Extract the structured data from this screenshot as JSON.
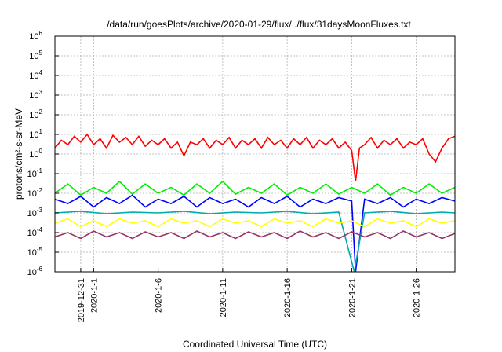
{
  "chart_data": {
    "type": "line",
    "title": "/data/run/goesPlots/archive/2020-01-29/flux/../flux/31daysMoonFluxes.txt",
    "xlabel": "Coordinated Universal Time (UTC)",
    "ylabel": "protons/cm²-s-sr-MeV",
    "yscale": "log",
    "ylim": [
      1e-06,
      1000000.0
    ],
    "xlim": [
      "2019-12-29",
      "2020-01-29"
    ],
    "grid": true,
    "legend": "none",
    "y_tick_labels": [
      {
        "base": "10",
        "exp": "-6"
      },
      {
        "base": "10",
        "exp": "-5"
      },
      {
        "base": "10",
        "exp": "-4"
      },
      {
        "base": "10",
        "exp": "-3"
      },
      {
        "base": "10",
        "exp": "-2"
      },
      {
        "base": "10",
        "exp": "-1"
      },
      {
        "base": "10",
        "exp": "0"
      },
      {
        "base": "10",
        "exp": "1"
      },
      {
        "base": "10",
        "exp": "2"
      },
      {
        "base": "10",
        "exp": "3"
      },
      {
        "base": "10",
        "exp": "4"
      },
      {
        "base": "10",
        "exp": "5"
      },
      {
        "base": "10",
        "exp": "6"
      }
    ],
    "x_ticks": [
      {
        "day": 2,
        "label": "2019-12-31"
      },
      {
        "day": 3,
        "label": "2020-1-1"
      },
      {
        "day": 8,
        "label": "2020-1-6"
      },
      {
        "day": 13,
        "label": "2020-1-11"
      },
      {
        "day": 18,
        "label": "2020-1-16"
      },
      {
        "day": 23,
        "label": "2020-1-21"
      },
      {
        "day": 28,
        "label": "2020-1-26"
      }
    ],
    "series": [
      {
        "color": "#ff0000",
        "values": [
          [
            0,
            2
          ],
          [
            0.5,
            5
          ],
          [
            1,
            3
          ],
          [
            1.5,
            8
          ],
          [
            2,
            4
          ],
          [
            2.5,
            10
          ],
          [
            3,
            3
          ],
          [
            3.5,
            6
          ],
          [
            4,
            2
          ],
          [
            4.5,
            9
          ],
          [
            5,
            4
          ],
          [
            5.5,
            7
          ],
          [
            6,
            3
          ],
          [
            6.5,
            8
          ],
          [
            7,
            2.5
          ],
          [
            7.5,
            5
          ],
          [
            8,
            3
          ],
          [
            8.5,
            6
          ],
          [
            9,
            2
          ],
          [
            9.5,
            4
          ],
          [
            10,
            0.8
          ],
          [
            10.5,
            4
          ],
          [
            11,
            3
          ],
          [
            11.5,
            6
          ],
          [
            12,
            2
          ],
          [
            12.5,
            5
          ],
          [
            13,
            3
          ],
          [
            13.5,
            7
          ],
          [
            14,
            2
          ],
          [
            14.5,
            5
          ],
          [
            15,
            3
          ],
          [
            15.5,
            6
          ],
          [
            16,
            2
          ],
          [
            16.5,
            7
          ],
          [
            17,
            3
          ],
          [
            17.5,
            5
          ],
          [
            18,
            2
          ],
          [
            18.5,
            6
          ],
          [
            19,
            3
          ],
          [
            19.5,
            7
          ],
          [
            20,
            2
          ],
          [
            20.5,
            5
          ],
          [
            21,
            3
          ],
          [
            21.5,
            6
          ],
          [
            22,
            2
          ],
          [
            22.5,
            4
          ],
          [
            23,
            1.5
          ],
          [
            23.3,
            0.04
          ],
          [
            23.6,
            2
          ],
          [
            24,
            3
          ],
          [
            24.5,
            7
          ],
          [
            25,
            2
          ],
          [
            25.5,
            5
          ],
          [
            26,
            3
          ],
          [
            26.5,
            6
          ],
          [
            27,
            2
          ],
          [
            27.5,
            4
          ],
          [
            28,
            3
          ],
          [
            28.5,
            6
          ],
          [
            29,
            1
          ],
          [
            29.5,
            0.4
          ],
          [
            30,
            2
          ],
          [
            30.5,
            6
          ],
          [
            31,
            8
          ]
        ]
      },
      {
        "color": "#00ee00",
        "values": [
          [
            0,
            0.01
          ],
          [
            1,
            0.03
          ],
          [
            2,
            0.008
          ],
          [
            3,
            0.02
          ],
          [
            4,
            0.01
          ],
          [
            5,
            0.04
          ],
          [
            6,
            0.009
          ],
          [
            7,
            0.03
          ],
          [
            8,
            0.01
          ],
          [
            9,
            0.02
          ],
          [
            10,
            0.008
          ],
          [
            11,
            0.03
          ],
          [
            12,
            0.01
          ],
          [
            13,
            0.04
          ],
          [
            14,
            0.009
          ],
          [
            15,
            0.02
          ],
          [
            16,
            0.01
          ],
          [
            17,
            0.03
          ],
          [
            18,
            0.008
          ],
          [
            19,
            0.02
          ],
          [
            20,
            0.01
          ],
          [
            21,
            0.03
          ],
          [
            22,
            0.009
          ],
          [
            23,
            0.02
          ],
          [
            24,
            0.01
          ],
          [
            25,
            0.03
          ],
          [
            26,
            0.008
          ],
          [
            27,
            0.02
          ],
          [
            28,
            0.01
          ],
          [
            29,
            0.03
          ],
          [
            30,
            0.01
          ],
          [
            31,
            0.02
          ]
        ]
      },
      {
        "color": "#0000ff",
        "values": [
          [
            0,
            0.005
          ],
          [
            1,
            0.003
          ],
          [
            2,
            0.007
          ],
          [
            3,
            0.002
          ],
          [
            4,
            0.006
          ],
          [
            5,
            0.003
          ],
          [
            6,
            0.008
          ],
          [
            7,
            0.002
          ],
          [
            8,
            0.005
          ],
          [
            9,
            0.003
          ],
          [
            10,
            0.007
          ],
          [
            11,
            0.002
          ],
          [
            12,
            0.006
          ],
          [
            13,
            0.003
          ],
          [
            14,
            0.005
          ],
          [
            15,
            0.002
          ],
          [
            16,
            0.006
          ],
          [
            17,
            0.003
          ],
          [
            18,
            0.007
          ],
          [
            19,
            0.002
          ],
          [
            20,
            0.005
          ],
          [
            21,
            0.003
          ],
          [
            22,
            0.006
          ],
          [
            23,
            0.004
          ],
          [
            23.3,
            1e-06
          ],
          [
            24,
            0.005
          ],
          [
            25,
            0.003
          ],
          [
            26,
            0.006
          ],
          [
            27,
            0.002
          ],
          [
            28,
            0.005
          ],
          [
            29,
            0.003
          ],
          [
            30,
            0.006
          ],
          [
            31,
            0.004
          ]
        ]
      },
      {
        "color": "#00aaaa",
        "values": [
          [
            0,
            0.001
          ],
          [
            2,
            0.0012
          ],
          [
            4,
            0.0009
          ],
          [
            6,
            0.0011
          ],
          [
            8,
            0.001
          ],
          [
            10,
            0.0012
          ],
          [
            12,
            0.0009
          ],
          [
            14,
            0.0011
          ],
          [
            16,
            0.001
          ],
          [
            18,
            0.0012
          ],
          [
            20,
            0.0009
          ],
          [
            22,
            0.0011
          ],
          [
            23.2,
            1e-06
          ],
          [
            24,
            0.001
          ],
          [
            26,
            0.0012
          ],
          [
            28,
            0.0009
          ],
          [
            30,
            0.0011
          ],
          [
            31,
            0.001
          ]
        ]
      },
      {
        "color": "#ffff00",
        "values": [
          [
            0,
            0.0003
          ],
          [
            1,
            0.0005
          ],
          [
            2,
            0.0002
          ],
          [
            3,
            0.0004
          ],
          [
            4,
            0.0002
          ],
          [
            5,
            0.0005
          ],
          [
            6,
            0.0003
          ],
          [
            7,
            0.0004
          ],
          [
            8,
            0.0002
          ],
          [
            9,
            0.0005
          ],
          [
            10,
            0.0003
          ],
          [
            11,
            0.0004
          ],
          [
            12,
            0.0002
          ],
          [
            13,
            0.0005
          ],
          [
            14,
            0.0003
          ],
          [
            15,
            0.0004
          ],
          [
            16,
            0.0002
          ],
          [
            17,
            0.0005
          ],
          [
            18,
            0.0003
          ],
          [
            19,
            0.0004
          ],
          [
            20,
            0.0002
          ],
          [
            21,
            0.0005
          ],
          [
            22,
            0.0003
          ],
          [
            23,
            0.0004
          ],
          [
            24,
            0.0002
          ],
          [
            25,
            0.0005
          ],
          [
            26,
            0.0003
          ],
          [
            27,
            0.0004
          ],
          [
            28,
            0.0002
          ],
          [
            29,
            0.0005
          ],
          [
            30,
            0.0003
          ],
          [
            31,
            0.0004
          ]
        ]
      },
      {
        "color": "#993366",
        "values": [
          [
            0,
            6e-05
          ],
          [
            1,
            0.0001
          ],
          [
            2,
            5e-05
          ],
          [
            3,
            0.00012
          ],
          [
            4,
            6e-05
          ],
          [
            5,
            0.0001
          ],
          [
            6,
            5e-05
          ],
          [
            7,
            0.00011
          ],
          [
            8,
            6e-05
          ],
          [
            9,
            0.0001
          ],
          [
            10,
            5e-05
          ],
          [
            11,
            0.00012
          ],
          [
            12,
            6e-05
          ],
          [
            13,
            0.0001
          ],
          [
            14,
            5e-05
          ],
          [
            15,
            0.00011
          ],
          [
            16,
            6e-05
          ],
          [
            17,
            0.0001
          ],
          [
            18,
            5e-05
          ],
          [
            19,
            0.00012
          ],
          [
            20,
            6e-05
          ],
          [
            21,
            0.0001
          ],
          [
            22,
            5e-05
          ],
          [
            23,
            0.00011
          ],
          [
            24,
            6e-05
          ],
          [
            25,
            0.0001
          ],
          [
            26,
            5e-05
          ],
          [
            27,
            0.00012
          ],
          [
            28,
            6e-05
          ],
          [
            29,
            0.0001
          ],
          [
            30,
            5e-05
          ],
          [
            31,
            9e-05
          ]
        ]
      }
    ]
  }
}
